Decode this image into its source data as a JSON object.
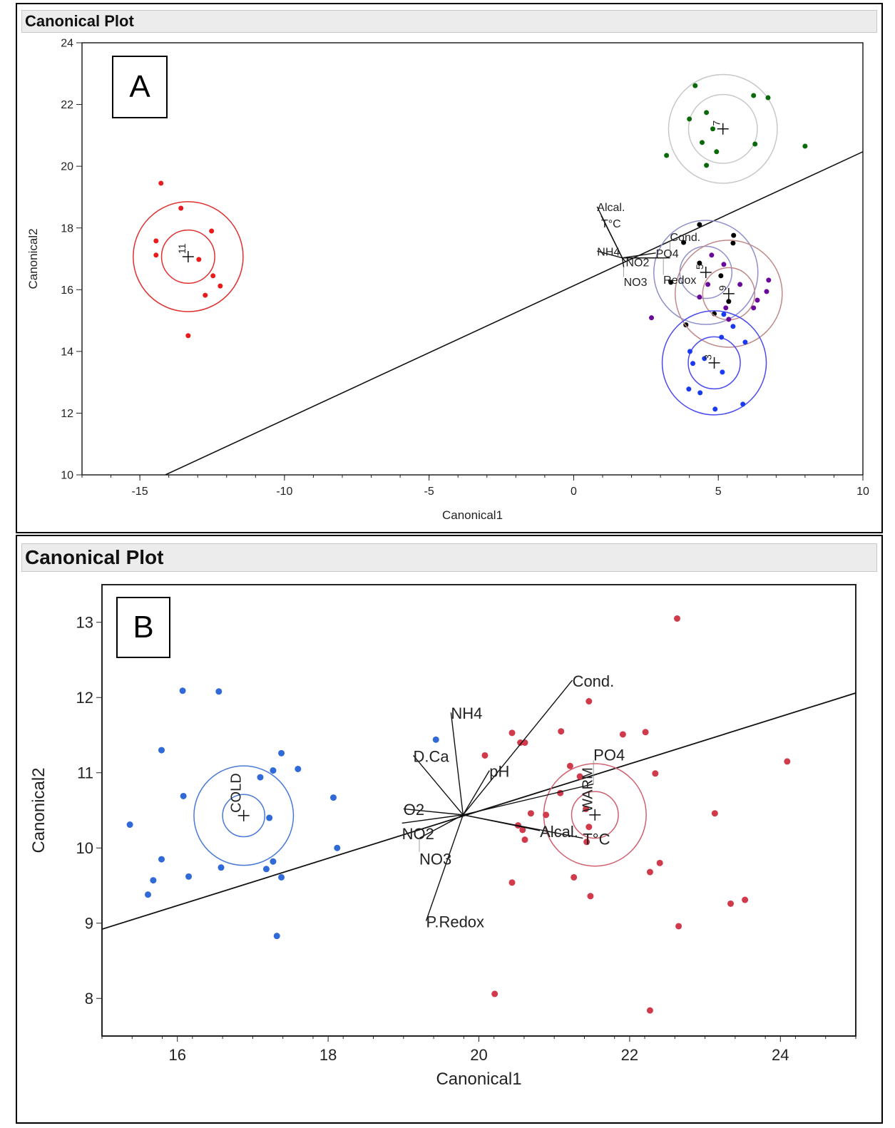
{
  "panel_a": {
    "header": "Canonical Plot",
    "tag": "A"
  },
  "panel_b": {
    "header": "Canonical Plot",
    "tag": "B"
  },
  "chart_data": [
    {
      "type": "scatter",
      "title": "Canonical Plot",
      "xlabel": "Canonical1",
      "ylabel": "Canonical2",
      "xlim": [
        -17,
        10
      ],
      "ylim": [
        10,
        24
      ],
      "xticks": [
        -15,
        -10,
        -5,
        0,
        5,
        10
      ],
      "yticks": [
        10,
        12,
        14,
        16,
        18,
        20,
        22,
        24
      ],
      "line": [
        [
          -14.12,
          10
        ],
        [
          10,
          20.47
        ]
      ],
      "groups": [
        {
          "name": "11",
          "color": "#e81c1c",
          "circle_color": "#e03030",
          "center": [
            -13.33,
            17.07
          ],
          "radii": [
            0.92,
            1.9
          ],
          "points": [
            [
              -14.27,
              19.45
            ],
            [
              -13.58,
              18.64
            ],
            [
              -14.44,
              17.58
            ],
            [
              -14.44,
              17.12
            ],
            [
              -12.52,
              17.9
            ],
            [
              -12.96,
              16.98
            ],
            [
              -12.47,
              16.45
            ],
            [
              -12.22,
              16.12
            ],
            [
              -12.74,
              15.82
            ],
            [
              -13.33,
              14.51
            ]
          ]
        },
        {
          "name": "7",
          "color": "#0a6a0a",
          "circle_color": "#c8c8c8",
          "center": [
            5.16,
            21.21
          ],
          "radii": [
            1.19,
            1.88
          ],
          "points": [
            [
              4.2,
              22.61
            ],
            [
              6.22,
              22.29
            ],
            [
              6.72,
              22.22
            ],
            [
              4.0,
              21.53
            ],
            [
              4.59,
              21.74
            ],
            [
              4.81,
              21.21
            ],
            [
              4.44,
              20.77
            ],
            [
              4.94,
              20.47
            ],
            [
              6.27,
              20.72
            ],
            [
              3.21,
              20.35
            ],
            [
              4.59,
              20.03
            ],
            [
              8.0,
              20.65
            ]
          ]
        },
        {
          "name": "5",
          "color": "#000000",
          "circle_color": "#9090cc",
          "center": [
            4.57,
            16.56
          ],
          "radii": [
            0.9,
            1.8
          ],
          "points": [
            [
              4.35,
              18.11
            ],
            [
              5.53,
              17.76
            ],
            [
              5.51,
              17.51
            ],
            [
              3.8,
              17.53
            ],
            [
              4.35,
              16.86
            ],
            [
              5.09,
              16.45
            ],
            [
              3.36,
              16.24
            ],
            [
              5.36,
              15.62
            ],
            [
              4.86,
              15.22
            ],
            [
              3.88,
              14.86
            ]
          ]
        },
        {
          "name": "9",
          "color": "#6a0a9a",
          "circle_color": "#c08888",
          "center": [
            5.36,
            15.87
          ],
          "radii": [
            0.9,
            1.85
          ],
          "points": [
            [
              4.77,
              17.12
            ],
            [
              5.19,
              16.82
            ],
            [
              4.64,
              16.17
            ],
            [
              5.75,
              16.17
            ],
            [
              6.74,
              16.31
            ],
            [
              6.67,
              15.94
            ],
            [
              6.35,
              15.66
            ],
            [
              6.22,
              15.41
            ],
            [
              5.26,
              15.41
            ],
            [
              5.36,
              15.04
            ],
            [
              4.35,
              15.76
            ],
            [
              2.69,
              15.09
            ]
          ]
        },
        {
          "name": "3",
          "color": "#1a3af0",
          "circle_color": "#4a4af0",
          "center": [
            4.86,
            13.63
          ],
          "radii": [
            0.9,
            1.8
          ],
          "points": [
            [
              5.19,
              15.2
            ],
            [
              5.51,
              14.81
            ],
            [
              5.11,
              14.46
            ],
            [
              5.93,
              14.3
            ],
            [
              4.02,
              14.0
            ],
            [
              4.12,
              13.61
            ],
            [
              4.52,
              13.77
            ],
            [
              5.14,
              13.33
            ],
            [
              3.98,
              12.78
            ],
            [
              4.37,
              12.66
            ],
            [
              4.89,
              12.13
            ],
            [
              5.85,
              12.29
            ]
          ]
        }
      ],
      "biplot_origin": [
        1.68,
        17.03
      ],
      "vectors": [
        {
          "label": "Alcal.",
          "end": [
            0.81,
            18.69
          ]
        },
        {
          "label": "T°C",
          "end": [
            0.95,
            18.4
          ]
        },
        {
          "label": "NH4",
          "end": [
            0.81,
            17.25
          ]
        },
        {
          "label": "PO4",
          "end": [
            2.84,
            17.19
          ]
        },
        {
          "label": "Redox",
          "end": [
            3.1,
            17.03
          ]
        },
        {
          "label": "Cond.",
          "end": [
            3.33,
            17.03
          ]
        },
        {
          "label": "NO2",
          "end": [
            1.8,
            16.9
          ]
        },
        {
          "label": "NO3",
          "end": [
            1.73,
            16.73
          ]
        }
      ]
    },
    {
      "type": "scatter",
      "title": "Canonical Plot",
      "xlabel": "Canonical1",
      "ylabel": "Canonical2",
      "xlim": [
        15,
        25
      ],
      "ylim": [
        7.5,
        13.5
      ],
      "xticks": [
        16,
        18,
        20,
        22,
        24
      ],
      "yticks": [
        8,
        9,
        10,
        11,
        12,
        13
      ],
      "line": [
        [
          15,
          8.92
        ],
        [
          25,
          12.06
        ]
      ],
      "groups": [
        {
          "name": "COLD",
          "color": "#2f6ad8",
          "circle_color": "#4a7ad8",
          "center": [
            16.88,
            10.43
          ],
          "radii": [
            0.28,
            0.66
          ],
          "points": [
            [
              16.07,
              12.09
            ],
            [
              16.55,
              12.08
            ],
            [
              15.79,
              11.3
            ],
            [
              17.38,
              11.26
            ],
            [
              17.27,
              11.03
            ],
            [
              17.6,
              11.05
            ],
            [
              17.1,
              10.94
            ],
            [
              16.08,
              10.69
            ],
            [
              18.07,
              10.67
            ],
            [
              17.22,
              10.4
            ],
            [
              15.37,
              10.31
            ],
            [
              18.12,
              10.0
            ],
            [
              15.79,
              9.85
            ],
            [
              16.58,
              9.74
            ],
            [
              17.18,
              9.72
            ],
            [
              17.27,
              9.82
            ],
            [
              16.15,
              9.62
            ],
            [
              17.38,
              9.61
            ],
            [
              15.68,
              9.57
            ],
            [
              15.61,
              9.38
            ],
            [
              17.32,
              8.83
            ],
            [
              19.43,
              11.44
            ]
          ]
        },
        {
          "name": "WARM",
          "color": "#d03a4a",
          "circle_color": "#d06070",
          "center": [
            21.54,
            10.44
          ],
          "radii": [
            0.31,
            0.68
          ],
          "points": [
            [
              22.63,
              13.05
            ],
            [
              21.46,
              11.95
            ],
            [
              20.44,
              11.53
            ],
            [
              21.09,
              11.55
            ],
            [
              20.55,
              11.4
            ],
            [
              20.61,
              11.4
            ],
            [
              20.08,
              11.23
            ],
            [
              21.91,
              11.51
            ],
            [
              22.21,
              11.54
            ],
            [
              24.09,
              11.15
            ],
            [
              21.21,
              11.09
            ],
            [
              22.34,
              10.99
            ],
            [
              21.34,
              10.95
            ],
            [
              21.08,
              10.73
            ],
            [
              20.69,
              10.46
            ],
            [
              20.89,
              10.44
            ],
            [
              23.13,
              10.46
            ],
            [
              20.52,
              10.3
            ],
            [
              21.42,
              10.52
            ],
            [
              20.61,
              10.11
            ],
            [
              20.58,
              10.24
            ],
            [
              21.43,
              10.08
            ],
            [
              21.46,
              10.28
            ],
            [
              21.26,
              9.61
            ],
            [
              22.27,
              9.68
            ],
            [
              22.4,
              9.8
            ],
            [
              20.44,
              9.54
            ],
            [
              21.48,
              9.36
            ],
            [
              23.34,
              9.26
            ],
            [
              23.53,
              9.31
            ],
            [
              22.65,
              8.96
            ],
            [
              20.21,
              8.06
            ],
            [
              22.27,
              7.84
            ]
          ]
        }
      ],
      "biplot_origin": [
        19.79,
        10.44
      ],
      "vectors": [
        {
          "label": "Cond.",
          "end": [
            21.24,
            12.23
          ]
        },
        {
          "label": "NH4",
          "end": [
            19.63,
            11.8
          ]
        },
        {
          "label": "D.Ca",
          "end": [
            19.13,
            11.23
          ]
        },
        {
          "label": "pH",
          "end": [
            20.14,
            11.03
          ]
        },
        {
          "label": "O2",
          "end": [
            19.0,
            10.52
          ]
        },
        {
          "label": "NO2",
          "end": [
            18.98,
            10.33
          ]
        },
        {
          "label": "NO3",
          "end": [
            19.21,
            10.13
          ]
        },
        {
          "label": "P.Redox",
          "end": [
            19.3,
            9.03
          ]
        },
        {
          "label": "PO4",
          "end": [
            21.52,
            10.85
          ]
        },
        {
          "label": "Alcal.",
          "end": [
            20.81,
            10.23
          ]
        },
        {
          "label": "T°C",
          "end": [
            21.38,
            10.13
          ]
        }
      ]
    }
  ]
}
